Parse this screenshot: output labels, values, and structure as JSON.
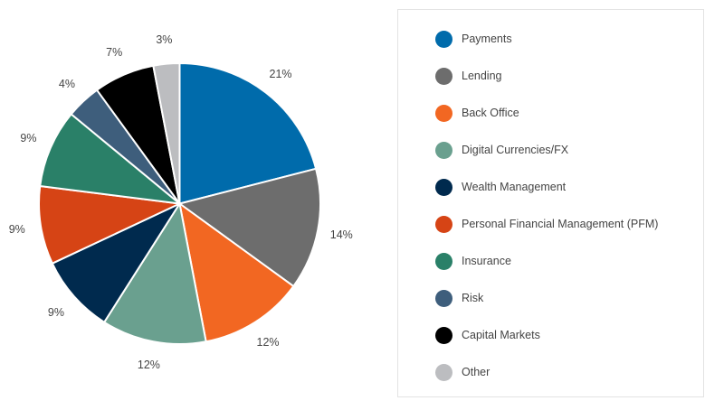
{
  "chart_data": {
    "type": "pie",
    "title": "",
    "start_angle_deg": 0,
    "direction": "clockwise",
    "categories": [
      "Payments",
      "Lending",
      "Back Office",
      "Digital Currencies/FX",
      "Wealth Management",
      "Personal Financial Management (PFM)",
      "Insurance",
      "Risk",
      "Capital Markets",
      "Other"
    ],
    "values": [
      21,
      14,
      12,
      12,
      9,
      9,
      9,
      4,
      7,
      3
    ],
    "labels": [
      "21%",
      "14%",
      "12%",
      "12%",
      "9%",
      "9%",
      "9%",
      "4%",
      "7%",
      "3%"
    ],
    "colors": [
      "#006bab",
      "#6d6d6d",
      "#f26722",
      "#6aa08f",
      "#002a4e",
      "#d64415",
      "#2a8068",
      "#3e5e7c",
      "#000000",
      "#bcbdc0"
    ],
    "legend_position": "right"
  },
  "legend": {
    "items": [
      {
        "label": "Payments",
        "color": "#006bab"
      },
      {
        "label": "Lending",
        "color": "#6d6d6d"
      },
      {
        "label": "Back Office",
        "color": "#f26722"
      },
      {
        "label": "Digital Currencies/FX",
        "color": "#6aa08f"
      },
      {
        "label": "Wealth Management",
        "color": "#002a4e"
      },
      {
        "label": "Personal Financial Management (PFM)",
        "color": "#d64415"
      },
      {
        "label": "Insurance",
        "color": "#2a8068"
      },
      {
        "label": "Risk",
        "color": "#3e5e7c"
      },
      {
        "label": "Capital Markets",
        "color": "#000000"
      },
      {
        "label": "Other",
        "color": "#bcbdc0"
      }
    ]
  }
}
